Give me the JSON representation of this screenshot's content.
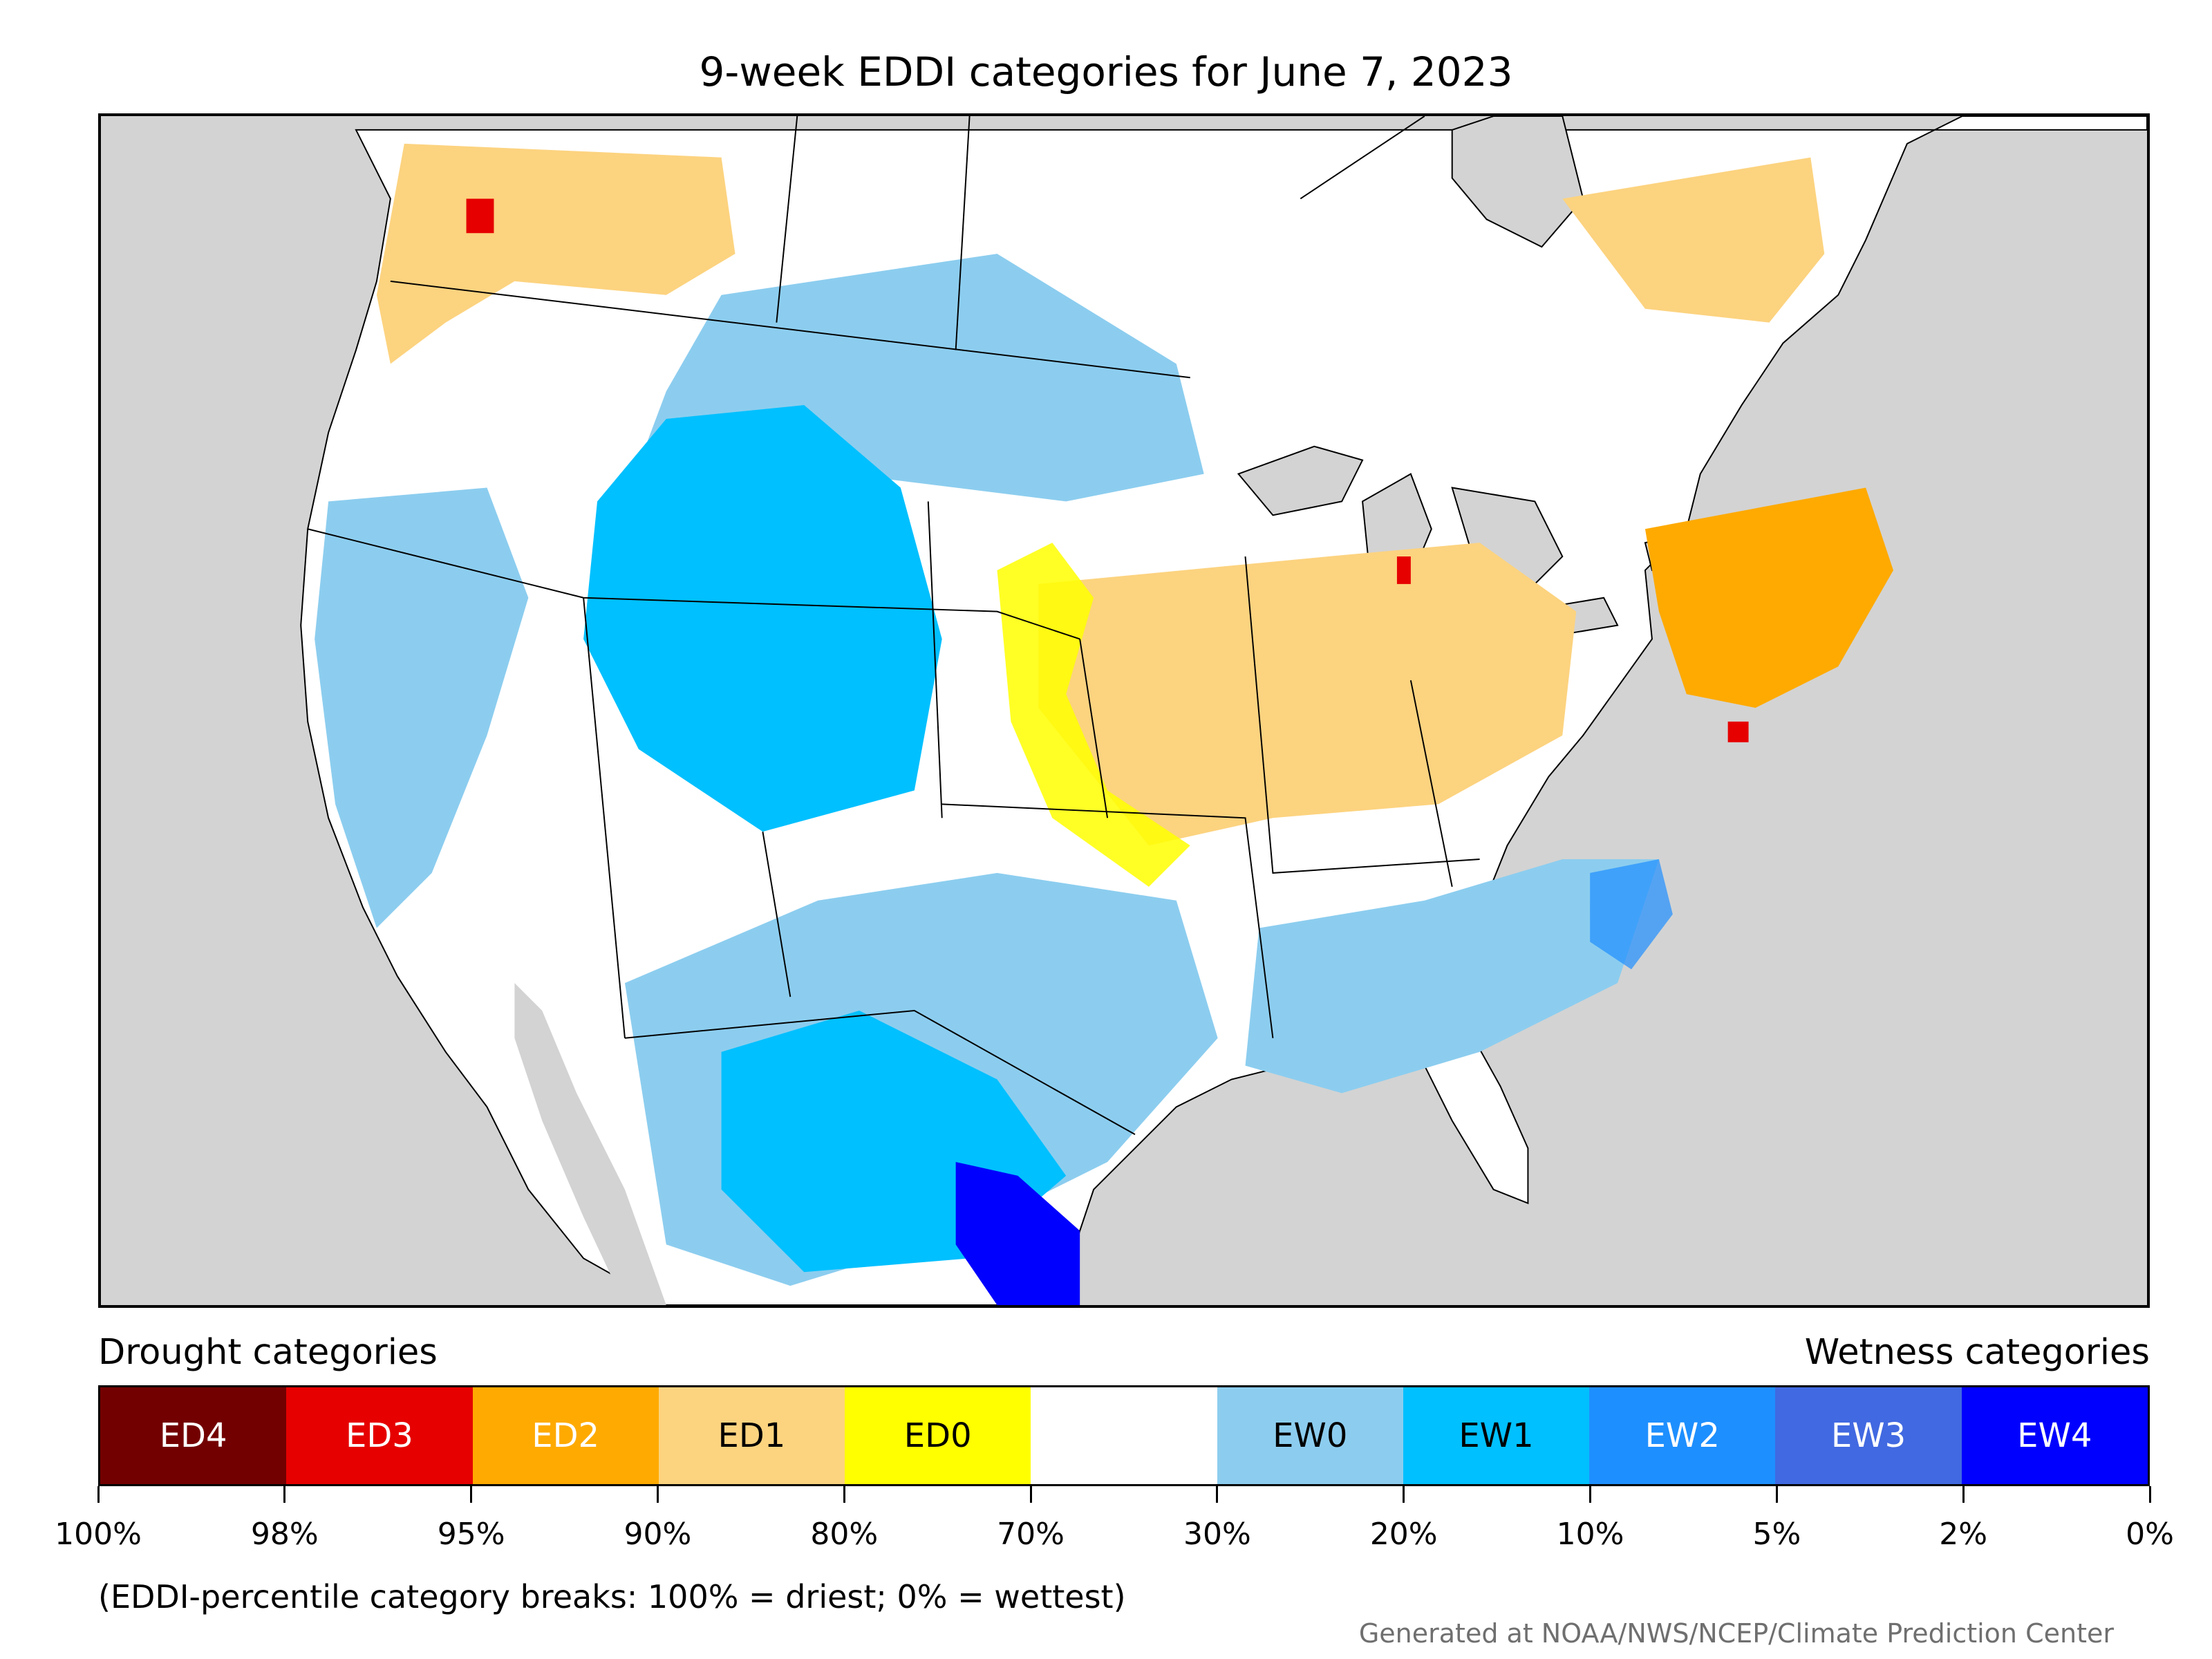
{
  "title": "9-week EDDI categories for June 7, 2023",
  "colors": {
    "ocean": "#d3d3d3",
    "ED4": "#730000",
    "ED3": "#e60000",
    "ED2": "#ffaa00",
    "ED1": "#fcd37f",
    "ED0": "#ffff00",
    "neutral": "#ffffff",
    "EW0": "#8ccdef",
    "EW1": "#00c0ff",
    "EW2": "#1e8fff",
    "EW3": "#4169e1",
    "EW4": "#0000ff"
  },
  "legend": {
    "drought_label": "Drought categories",
    "wetness_label": "Wetness categories",
    "categories": [
      {
        "label": "ED4",
        "color": "#730000",
        "text_color": "#ffffff"
      },
      {
        "label": "ED3",
        "color": "#e60000",
        "text_color": "#ffffff"
      },
      {
        "label": "ED2",
        "color": "#ffaa00",
        "text_color": "#ffffff"
      },
      {
        "label": "ED1",
        "color": "#fcd37f",
        "text_color": "#000000"
      },
      {
        "label": "ED0",
        "color": "#ffff00",
        "text_color": "#000000"
      },
      {
        "label": "",
        "color": "#ffffff",
        "text_color": "#000000"
      },
      {
        "label": "EW0",
        "color": "#8ccdef",
        "text_color": "#000000"
      },
      {
        "label": "EW1",
        "color": "#00c0ff",
        "text_color": "#000000"
      },
      {
        "label": "EW2",
        "color": "#1e8fff",
        "text_color": "#ffffff"
      },
      {
        "label": "EW3",
        "color": "#4169e1",
        "text_color": "#ffffff"
      },
      {
        "label": "EW4",
        "color": "#0000ff",
        "text_color": "#ffffff"
      }
    ],
    "ticks": [
      "100%",
      "98%",
      "95%",
      "90%",
      "80%",
      "70%",
      "30%",
      "20%",
      "10%",
      "5%",
      "2%",
      "0%"
    ]
  },
  "note": "(EDDI-percentile category breaks: 100% = driest; 0% = wettest)",
  "credit": "Generated at NOAA/NWS/NCEP/Climate Prediction Center"
}
